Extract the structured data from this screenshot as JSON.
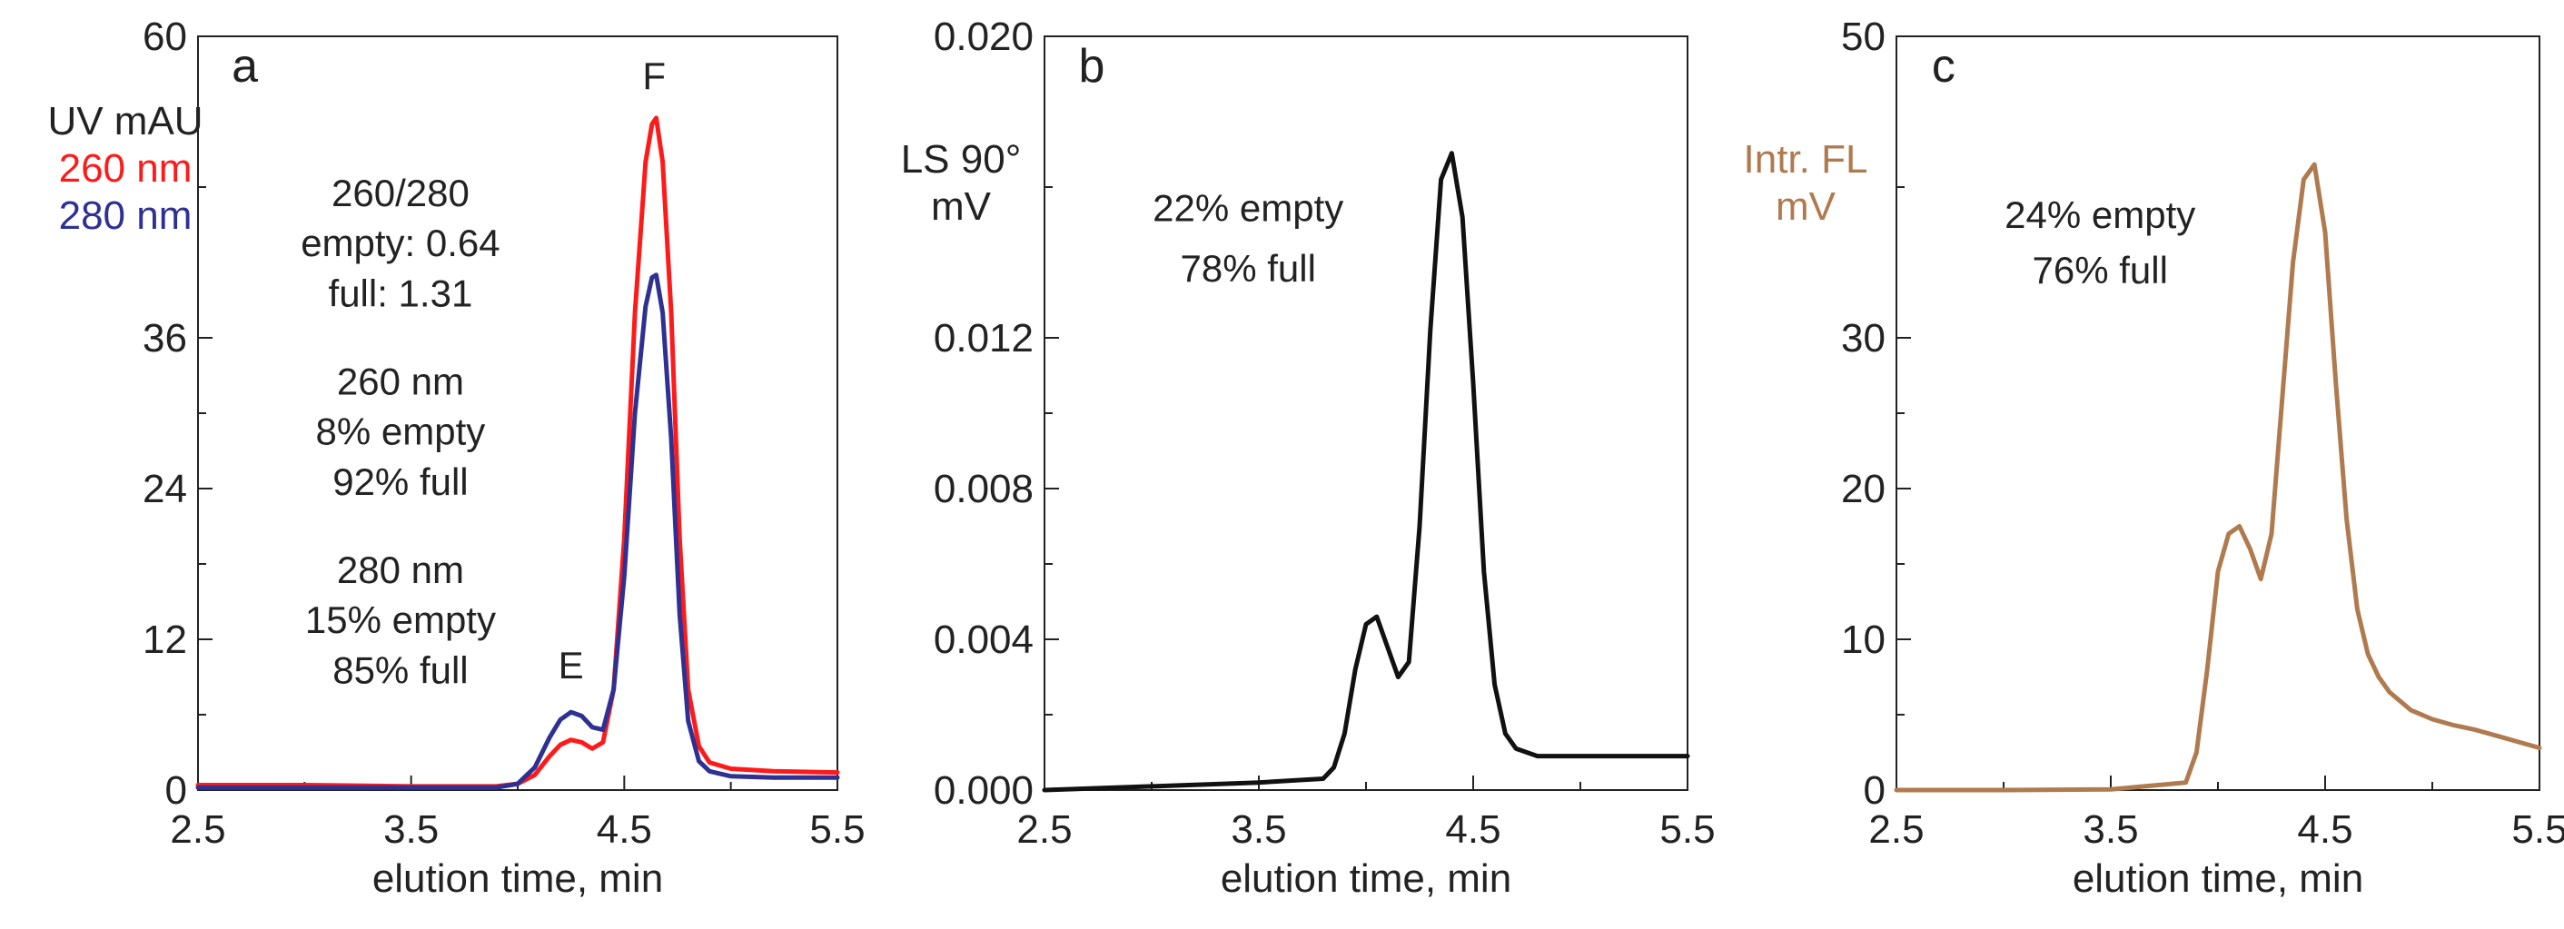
{
  "colors": {
    "red": "#ff1a1a",
    "blue": "#2e3192",
    "black": "#111111",
    "brown": "#b07a4f"
  },
  "chart_data": [
    {
      "type": "line",
      "panel": "a",
      "xlabel": "elution time, min",
      "ylabel_lines": [
        {
          "text": "UV mAU",
          "color": "#222222"
        },
        {
          "text": "260 nm",
          "color": "#ff1a1a"
        },
        {
          "text": "280 nm",
          "color": "#2e3192"
        }
      ],
      "xlim": [
        2.5,
        5.5
      ],
      "ylim": [
        0,
        60
      ],
      "xticks": [
        "2.5",
        "3.5",
        "4.5",
        "5.5"
      ],
      "xtick_values": [
        2.5,
        3.5,
        4.5,
        5.5
      ],
      "yticks": [
        "0",
        "12",
        "24",
        "36",
        "60"
      ],
      "ytick_values": [
        0,
        12,
        24,
        36,
        60
      ],
      "minor_xticks": [
        3.0,
        4.0,
        5.0
      ],
      "minor_yticks": [
        6,
        18,
        30,
        48
      ],
      "annotations": [
        {
          "text": "260/280",
          "x": 3.45,
          "y": 46.5
        },
        {
          "text": "empty: 0.64",
          "x": 3.45,
          "y": 42.5
        },
        {
          "text": "full: 1.31",
          "x": 3.45,
          "y": 38.5
        },
        {
          "text": "260 nm",
          "x": 3.45,
          "y": 31.5
        },
        {
          "text": "8% empty",
          "x": 3.45,
          "y": 27.5
        },
        {
          "text": "92% full",
          "x": 3.45,
          "y": 23.5
        },
        {
          "text": "280 nm",
          "x": 3.45,
          "y": 16.5
        },
        {
          "text": "15% empty",
          "x": 3.45,
          "y": 12.5
        },
        {
          "text": "85% full",
          "x": 3.45,
          "y": 8.5
        },
        {
          "text": "E",
          "x": 4.25,
          "y": 8.9
        },
        {
          "text": "F",
          "x": 4.64,
          "y": 55.8
        }
      ],
      "series": [
        {
          "name": "260 nm",
          "color": "#ff1a1a",
          "x": [
            2.5,
            3.0,
            3.5,
            3.9,
            4.0,
            4.08,
            4.15,
            4.2,
            4.25,
            4.3,
            4.35,
            4.4,
            4.45,
            4.5,
            4.55,
            4.6,
            4.63,
            4.65,
            4.68,
            4.72,
            4.76,
            4.8,
            4.85,
            4.9,
            5.0,
            5.2,
            5.5
          ],
          "y": [
            0.4,
            0.4,
            0.3,
            0.3,
            0.5,
            1.2,
            2.7,
            3.6,
            4.0,
            3.8,
            3.3,
            3.8,
            8.0,
            20.0,
            38.0,
            50.0,
            53.0,
            53.5,
            50.0,
            38.0,
            20.0,
            8.0,
            3.5,
            2.2,
            1.7,
            1.5,
            1.4
          ]
        },
        {
          "name": "280 nm",
          "color": "#2e3192",
          "x": [
            2.5,
            3.0,
            3.5,
            3.9,
            4.0,
            4.08,
            4.15,
            4.2,
            4.25,
            4.3,
            4.35,
            4.4,
            4.45,
            4.5,
            4.55,
            4.6,
            4.63,
            4.65,
            4.68,
            4.72,
            4.76,
            4.8,
            4.85,
            4.9,
            5.0,
            5.2,
            5.5
          ],
          "y": [
            0.2,
            0.2,
            0.2,
            0.2,
            0.5,
            1.8,
            4.2,
            5.6,
            6.2,
            5.9,
            5.0,
            4.8,
            8.0,
            17.0,
            30.0,
            38.5,
            40.8,
            41.0,
            38.0,
            28.0,
            14.0,
            5.5,
            2.3,
            1.5,
            1.1,
            1.0,
            1.0
          ]
        }
      ]
    },
    {
      "type": "line",
      "panel": "b",
      "xlabel": "elution time, min",
      "ylabel_lines": [
        {
          "text": "LS 90°",
          "color": "#222222"
        },
        {
          "text": "mV",
          "color": "#222222"
        }
      ],
      "xlim": [
        2.5,
        5.5
      ],
      "ylim": [
        0,
        0.02
      ],
      "xticks": [
        "2.5",
        "3.5",
        "4.5",
        "5.5"
      ],
      "xtick_values": [
        2.5,
        3.5,
        4.5,
        5.5
      ],
      "yticks": [
        "0.000",
        "0.004",
        "0.008",
        "0.012",
        "0.020"
      ],
      "ytick_values": [
        0,
        0.004,
        0.008,
        0.012,
        0.02
      ],
      "minor_xticks": [
        3.0,
        4.0,
        5.0
      ],
      "minor_yticks": [
        0.002,
        0.006,
        0.01,
        0.016
      ],
      "annotations": [
        {
          "text": "22% empty",
          "x": 3.45,
          "y": 0.0151
        },
        {
          "text": "78% full",
          "x": 3.45,
          "y": 0.0135
        },
        {
          "text": "b",
          "x": 2.72,
          "y": 0.0188
        }
      ],
      "series": [
        {
          "name": "LS 90°",
          "color": "#111111",
          "x": [
            2.5,
            3.0,
            3.5,
            3.8,
            3.85,
            3.9,
            3.95,
            4.0,
            4.05,
            4.1,
            4.15,
            4.2,
            4.25,
            4.3,
            4.35,
            4.4,
            4.45,
            4.5,
            4.55,
            4.6,
            4.65,
            4.7,
            4.8,
            5.0,
            5.5
          ],
          "y": [
            0.0,
            0.0001,
            0.0002,
            0.0003,
            0.0006,
            0.0015,
            0.0032,
            0.0044,
            0.0046,
            0.0038,
            0.003,
            0.0034,
            0.007,
            0.0122,
            0.0162,
            0.0169,
            0.0152,
            0.0108,
            0.0058,
            0.0028,
            0.0015,
            0.0011,
            0.0009,
            0.0009,
            0.0009
          ]
        }
      ]
    },
    {
      "type": "line",
      "panel": "c",
      "xlabel": "elution time, min",
      "ylabel_lines": [
        {
          "text": "Intr. FL",
          "color": "#b07a4f"
        },
        {
          "text": "mV",
          "color": "#b07a4f"
        }
      ],
      "xlim": [
        2.5,
        5.5
      ],
      "ylim": [
        0,
        50
      ],
      "xticks": [
        "2.5",
        "3.5",
        "4.5",
        "5.5"
      ],
      "xtick_values": [
        2.5,
        3.5,
        4.5,
        5.5
      ],
      "yticks": [
        "0",
        "10",
        "20",
        "30",
        "50"
      ],
      "ytick_values": [
        0,
        10,
        20,
        30,
        50
      ],
      "minor_xticks": [
        3.0,
        4.0,
        5.0
      ],
      "minor_yticks": [
        5,
        15,
        25,
        40
      ],
      "annotations": [
        {
          "text": "24% empty",
          "x": 3.45,
          "y": 37.3
        },
        {
          "text": "76% full",
          "x": 3.45,
          "y": 33.6
        },
        {
          "text": "c",
          "x": 2.72,
          "y": 47.0
        }
      ],
      "series": [
        {
          "name": "Intr. FL",
          "color": "#b07a4f",
          "x": [
            2.5,
            3.0,
            3.5,
            3.85,
            3.9,
            3.95,
            4.0,
            4.05,
            4.1,
            4.15,
            4.2,
            4.25,
            4.3,
            4.35,
            4.4,
            4.45,
            4.5,
            4.55,
            4.6,
            4.65,
            4.7,
            4.75,
            4.8,
            4.9,
            5.0,
            5.1,
            5.2,
            5.3,
            5.4,
            5.5
          ],
          "y": [
            0.0,
            0.0,
            0.05,
            0.5,
            2.5,
            8.0,
            14.5,
            17.0,
            17.5,
            16.0,
            14.0,
            17.0,
            26.0,
            35.0,
            40.5,
            41.5,
            37.0,
            27.0,
            18.0,
            12.0,
            9.0,
            7.5,
            6.5,
            5.3,
            4.7,
            4.3,
            4.0,
            3.6,
            3.2,
            2.8
          ]
        }
      ]
    }
  ],
  "panel_labels": {
    "a": "a",
    "b": "b",
    "c": "c"
  },
  "peak_labels": {
    "E": "E",
    "F": "F"
  }
}
